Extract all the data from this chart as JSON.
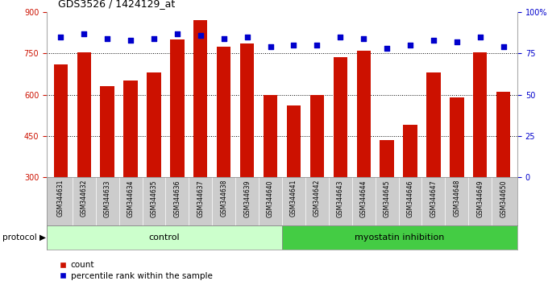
{
  "title": "GDS3526 / 1424129_at",
  "samples": [
    "GSM344631",
    "GSM344632",
    "GSM344633",
    "GSM344634",
    "GSM344635",
    "GSM344636",
    "GSM344637",
    "GSM344638",
    "GSM344639",
    "GSM344640",
    "GSM344641",
    "GSM344642",
    "GSM344643",
    "GSM344644",
    "GSM344645",
    "GSM344646",
    "GSM344647",
    "GSM344648",
    "GSM344649",
    "GSM344650"
  ],
  "counts": [
    710,
    755,
    630,
    650,
    680,
    800,
    870,
    775,
    785,
    600,
    560,
    600,
    735,
    760,
    435,
    490,
    680,
    590,
    755,
    610
  ],
  "percentiles": [
    85,
    87,
    84,
    83,
    84,
    87,
    86,
    84,
    85,
    79,
    80,
    80,
    85,
    84,
    78,
    80,
    83,
    82,
    85,
    79
  ],
  "control_count": 10,
  "bar_color": "#cc1100",
  "dot_color": "#0000cc",
  "ymin": 300,
  "ymax": 900,
  "yticks": [
    300,
    450,
    600,
    750,
    900
  ],
  "right_yticks": [
    0,
    25,
    50,
    75,
    100
  ],
  "right_ytick_labels": [
    "0",
    "25",
    "50",
    "75",
    "100%"
  ],
  "hgrid_values": [
    450,
    600,
    750
  ],
  "control_label": "control",
  "treatment_label": "myostatin inhibition",
  "protocol_label": "protocol",
  "legend_count": "count",
  "legend_pct": "percentile rank within the sample",
  "bg_color": "#ffffff",
  "label_area_bg": "#cccccc",
  "control_bg": "#ccffcc",
  "treatment_bg": "#44cc44"
}
